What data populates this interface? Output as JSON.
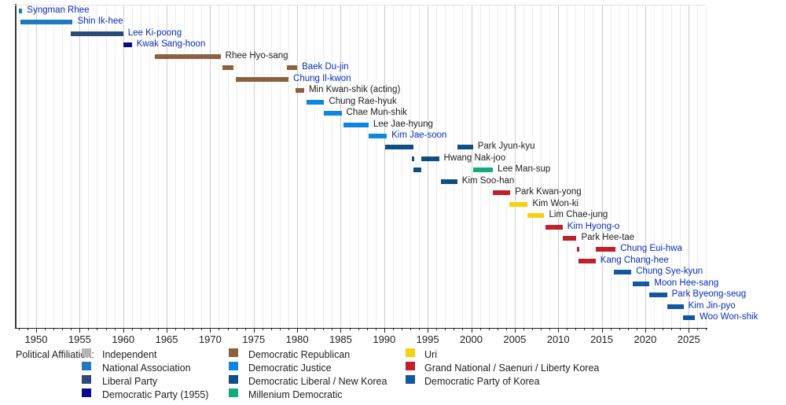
{
  "chart_data": {
    "type": "timeline",
    "title": "",
    "x_axis": {
      "unit": "year",
      "domain_start": 1948,
      "domain_end": 2027,
      "major_tick_interval": 5,
      "minor_tick_interval": 1,
      "tick_labels": [
        "1950",
        "1955",
        "1960",
        "1965",
        "1970",
        "1975",
        "1980",
        "1985",
        "1990",
        "1995",
        "2000",
        "2005",
        "2010",
        "2015",
        "2020",
        "2025"
      ],
      "grid": "yearly light, 5-yearly darker"
    },
    "party_colors": {
      "independent": "#b5b5b5",
      "national_association": "#2279bd",
      "liberal": "#2d4a77",
      "democratic_1955": "#0a0a8c",
      "democratic_republican": "#8a6240",
      "democratic_justice": "#0e86e0",
      "democratic_liberal_new_korea": "#0f4e82",
      "millenium_democratic": "#12ab7d",
      "uri": "#f6d112",
      "grand_national": "#c01f2b",
      "dpk": "#11589f"
    },
    "link_color": "#0b2eb8",
    "plain_label_color": "#202122",
    "speakers": [
      {
        "name": "Syngman Rhee",
        "is_link": true,
        "terms": [
          {
            "start": 1948.0,
            "end": 1948.4,
            "party": "national_association"
          }
        ]
      },
      {
        "name": "Shin Ik-hee",
        "is_link": true,
        "terms": [
          {
            "start": 1948.2,
            "end": 1954.2,
            "party": "national_association"
          }
        ]
      },
      {
        "name": "Lee Ki-poong",
        "is_link": true,
        "terms": [
          {
            "start": 1954.0,
            "end": 1960.0,
            "party": "liberal"
          }
        ]
      },
      {
        "name": "Kwak Sang-hoon",
        "is_link": true,
        "terms": [
          {
            "start": 1960.0,
            "end": 1961.0,
            "party": "democratic_1955"
          }
        ]
      },
      {
        "name": "Rhee Hyo-sang",
        "is_link": false,
        "terms": [
          {
            "start": 1963.6,
            "end": 1971.2,
            "party": "democratic_republican"
          }
        ]
      },
      {
        "name": "Baek Du-jin",
        "is_link": true,
        "terms": [
          {
            "start": 1971.4,
            "end": 1972.7,
            "party": "democratic_republican"
          },
          {
            "start": 1978.8,
            "end": 1980.0,
            "party": "democratic_republican"
          }
        ]
      },
      {
        "name": "Chung Il-kwon",
        "is_link": true,
        "terms": [
          {
            "start": 1972.9,
            "end": 1979.0,
            "party": "democratic_republican"
          }
        ]
      },
      {
        "name": "Min Kwan-shik (acting)",
        "is_link": false,
        "terms": [
          {
            "start": 1979.8,
            "end": 1980.8,
            "party": "democratic_republican"
          }
        ]
      },
      {
        "name": "Chung Rae-hyuk",
        "is_link": false,
        "terms": [
          {
            "start": 1981.1,
            "end": 1983.1,
            "party": "democratic_justice"
          }
        ]
      },
      {
        "name": "Chae Mun-shik",
        "is_link": false,
        "terms": [
          {
            "start": 1983.1,
            "end": 1985.1,
            "party": "democratic_justice"
          }
        ]
      },
      {
        "name": "Lee Jae-hyung",
        "is_link": false,
        "terms": [
          {
            "start": 1985.3,
            "end": 1988.2,
            "party": "democratic_justice"
          }
        ]
      },
      {
        "name": "Kim Jae-soon",
        "is_link": true,
        "terms": [
          {
            "start": 1988.2,
            "end": 1990.3,
            "party": "democratic_justice"
          }
        ]
      },
      {
        "name": "Park Jyun-kyu",
        "is_link": false,
        "terms": [
          {
            "start": 1990.1,
            "end": 1993.4,
            "party": "democratic_liberal_new_korea"
          },
          {
            "start": 1998.4,
            "end": 2000.2,
            "party": "democratic_liberal_new_korea"
          }
        ]
      },
      {
        "name": "Hwang Nak-joo",
        "is_link": false,
        "terms": [
          {
            "start": 1993.2,
            "end": 1993.45,
            "party": "democratic_liberal_new_korea"
          },
          {
            "start": 1994.3,
            "end": 1996.3,
            "party": "democratic_liberal_new_korea"
          }
        ]
      },
      {
        "name": "Lee Man-sup",
        "is_link": false,
        "terms": [
          {
            "start": 1993.4,
            "end": 1994.3,
            "party": "democratic_liberal_new_korea"
          },
          {
            "start": 2000.2,
            "end": 2002.5,
            "party": "millenium_democratic"
          }
        ]
      },
      {
        "name": "Kim Soo-han",
        "is_link": false,
        "terms": [
          {
            "start": 1996.5,
            "end": 1998.4,
            "party": "democratic_liberal_new_korea"
          }
        ]
      },
      {
        "name": "Park Kwan-yong",
        "is_link": false,
        "terms": [
          {
            "start": 2002.5,
            "end": 2004.5,
            "party": "grand_national"
          }
        ]
      },
      {
        "name": "Kim Won-ki",
        "is_link": false,
        "terms": [
          {
            "start": 2004.4,
            "end": 2006.5,
            "party": "uri"
          }
        ]
      },
      {
        "name": "Lim Chae-jung",
        "is_link": false,
        "terms": [
          {
            "start": 2006.5,
            "end": 2008.4,
            "party": "uri"
          }
        ]
      },
      {
        "name": "Kim Hyong-o",
        "is_link": true,
        "terms": [
          {
            "start": 2008.5,
            "end": 2010.5,
            "party": "grand_national"
          }
        ]
      },
      {
        "name": "Park Hee-tae",
        "is_link": false,
        "terms": [
          {
            "start": 2010.5,
            "end": 2012.1,
            "party": "grand_national"
          }
        ]
      },
      {
        "name": "Chung Eui-hwa",
        "is_link": true,
        "terms": [
          {
            "start": 2012.15,
            "end": 2012.4,
            "party": "grand_national"
          },
          {
            "start": 2014.3,
            "end": 2016.6,
            "party": "grand_national"
          }
        ]
      },
      {
        "name": "Kang Chang-hee",
        "is_link": true,
        "terms": [
          {
            "start": 2012.3,
            "end": 2014.3,
            "party": "grand_national"
          }
        ]
      },
      {
        "name": "Chung Sye-kyun",
        "is_link": true,
        "terms": [
          {
            "start": 2016.4,
            "end": 2018.4,
            "party": "dpk"
          }
        ]
      },
      {
        "name": "Moon Hee-sang",
        "is_link": true,
        "terms": [
          {
            "start": 2018.6,
            "end": 2020.5,
            "party": "dpk"
          }
        ]
      },
      {
        "name": "Park Byeong-seug",
        "is_link": true,
        "terms": [
          {
            "start": 2020.5,
            "end": 2022.5,
            "party": "dpk"
          }
        ]
      },
      {
        "name": "Kim Jin-pyo",
        "is_link": true,
        "terms": [
          {
            "start": 2022.5,
            "end": 2024.4,
            "party": "dpk"
          }
        ]
      },
      {
        "name": "Woo Won-shik",
        "is_link": true,
        "terms": [
          {
            "start": 2024.3,
            "end": 2025.7,
            "party": "dpk"
          }
        ]
      }
    ],
    "legend": {
      "title": "Political Affiliation:",
      "columns": [
        [
          {
            "label": "Independent",
            "party": "independent"
          },
          {
            "label": "National Association",
            "party": "national_association"
          },
          {
            "label": "Liberal Party",
            "party": "liberal"
          },
          {
            "label": "Democratic Party (1955)",
            "party": "democratic_1955"
          }
        ],
        [
          {
            "label": "Democratic Republican",
            "party": "democratic_republican"
          },
          {
            "label": "Democratic Justice",
            "party": "democratic_justice"
          },
          {
            "label": "Democratic Liberal / New Korea",
            "party": "democratic_liberal_new_korea"
          },
          {
            "label": "Millenium Democratic",
            "party": "millenium_democratic"
          }
        ],
        [
          {
            "label": "Uri",
            "party": "uri"
          },
          {
            "label": "Grand National / Saenuri / Liberty Korea",
            "party": "grand_national"
          },
          {
            "label": "Democratic Party of Korea",
            "party": "dpk"
          }
        ]
      ]
    }
  }
}
